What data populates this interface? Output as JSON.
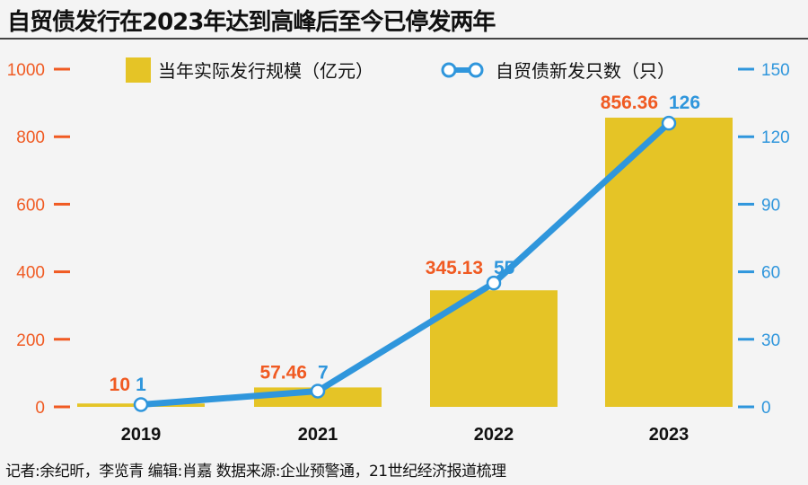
{
  "title": "自贸债发行在2023年达到高峰后至今已停发两年",
  "footer": "记者:余纪昕，李览青  编辑:肖嘉  数据来源:企业预警通，21世纪经济报道梳理",
  "chart_data": {
    "type": "bar+line",
    "categories": [
      "2019",
      "2021",
      "2022",
      "2023"
    ],
    "series": [
      {
        "name": "当年实际发行规模（亿元）",
        "type": "bar",
        "axis": "left",
        "values": [
          10,
          57.46,
          345.13,
          856.36
        ],
        "labels": [
          "10",
          "57.46",
          "345.13",
          "856.36"
        ],
        "color": "#e5c426"
      },
      {
        "name": "自贸债新发只数（只）",
        "type": "line",
        "axis": "right",
        "values": [
          1,
          7,
          55,
          126
        ],
        "labels": [
          "1",
          "7",
          "55",
          "126"
        ],
        "color": "#2f96dc"
      }
    ],
    "left_axis": {
      "ylim": [
        0,
        1000
      ],
      "ticks": [
        "0",
        "200",
        "400",
        "600",
        "800",
        "1000"
      ],
      "color": "#f05a22"
    },
    "right_axis": {
      "ylim": [
        0,
        150
      ],
      "ticks": [
        "0",
        "30",
        "60",
        "90",
        "120",
        "150"
      ],
      "color": "#2f96dc"
    },
    "label_color_bar": "#f05a22",
    "label_color_line": "#2f96dc",
    "legend_position": "top",
    "grid": false
  }
}
